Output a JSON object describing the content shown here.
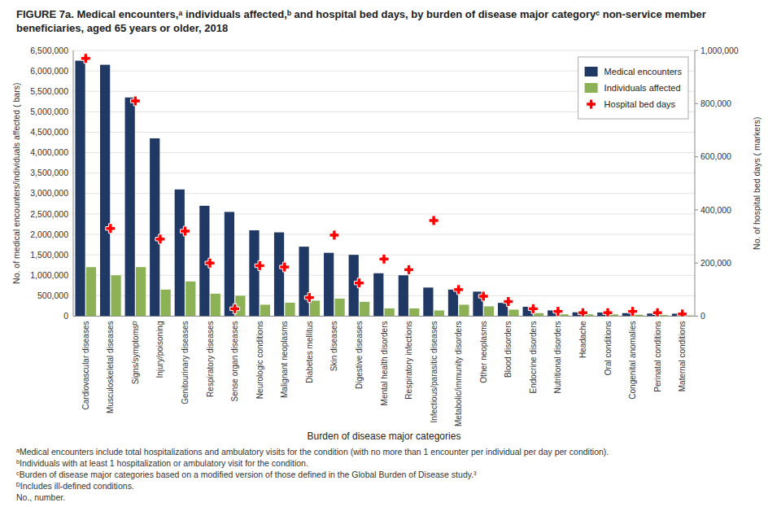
{
  "chart_data": {
    "type": "bar",
    "title": "FIGURE 7a. Medical encounters,ᵃ individuals affected,ᵇ and hospital bed days, by burden of disease major categoryᶜ non-service member beneficiaries, aged 65 years or older, 2018",
    "xlabel": "Burden of disease major categories",
    "ylabel": "No. of medical encounters/individuals affected ( bars)",
    "y2label": "No. of hospital bed days ( markers)",
    "categories": [
      "Cardiovascular diseases",
      "Musculoskeletal diseases",
      "Signs/symptomsᴰ",
      "Injury/poisoning",
      "Genitourinary diseases",
      "Respiratory diseases",
      "Sense organ diseases",
      "Neurologic conditions",
      "Malignant neoplasms",
      "Diabetes mellitus",
      "Skin diseases",
      "Digestive diseases",
      "Mental health disorders",
      "Respiratory infections",
      "Infectious/parasitic diseases",
      "Metabolic/immunity disorders",
      "Other neoplasms",
      "Blood disorders",
      "Endocrine disorders",
      "Nutritional disorders",
      "Headache",
      "Oral conditions",
      "Congenital anomalies",
      "Perinatal conditions",
      "Maternal conditions"
    ],
    "series": [
      {
        "name": "Medical encounters",
        "color": "#1f3864",
        "values": [
          6250000,
          6150000,
          5350000,
          4350000,
          3100000,
          2700000,
          2550000,
          2100000,
          2050000,
          1700000,
          1550000,
          1500000,
          1050000,
          1000000,
          700000,
          650000,
          600000,
          325000,
          230000,
          140000,
          95000,
          90000,
          75000,
          65000,
          60000
        ]
      },
      {
        "name": "Individuals affected",
        "color": "#8db255",
        "values": [
          1200000,
          1000000,
          1200000,
          650000,
          850000,
          550000,
          500000,
          280000,
          330000,
          380000,
          430000,
          350000,
          190000,
          190000,
          140000,
          280000,
          240000,
          160000,
          75000,
          45000,
          45000,
          45000,
          35000,
          28000,
          18000
        ]
      },
      {
        "name": "Hospital bed days",
        "color": "#ff0000",
        "type": "scatter",
        "marker": "plus",
        "axis": "y2",
        "values": [
          970000,
          330000,
          810000,
          290000,
          320000,
          200000,
          28000,
          190000,
          185000,
          70000,
          305000,
          125000,
          215000,
          175000,
          360000,
          100000,
          75000,
          55000,
          28000,
          18000,
          13000,
          13000,
          18000,
          13000,
          8000
        ]
      }
    ],
    "ylim": [
      0,
      6500000
    ],
    "yticks": [
      0,
      {
        "value": 500000,
        "label": "500,000"
      },
      {
        "value": 1000000,
        "label": "1,000,000"
      },
      {
        "value": 1500000,
        "label": "1,500,000"
      },
      {
        "value": 2000000,
        "label": "2,000,000"
      },
      {
        "value": 2500000,
        "label": "2,500,000"
      },
      {
        "value": 3000000,
        "label": "3,000,000"
      },
      {
        "value": 3500000,
        "label": "3,500,000"
      },
      {
        "value": 4000000,
        "label": "4,000,000"
      },
      {
        "value": 4500000,
        "label": "4,500,000"
      },
      {
        "value": 5000000,
        "label": "5,000,000"
      },
      {
        "value": 5500000,
        "label": "5,500,000"
      },
      {
        "value": 6000000,
        "label": "6,000,000"
      },
      {
        "value": 6500000,
        "label": "6,500,000"
      }
    ],
    "y2lim": [
      0,
      1000000
    ],
    "y2ticks": [
      0,
      {
        "value": 200000,
        "label": "200,000"
      },
      {
        "value": 400000,
        "label": "400,000"
      },
      {
        "value": 600000,
        "label": "600,000"
      },
      {
        "value": 800000,
        "label": "800,000"
      },
      {
        "value": 1000000,
        "label": "1,000,000"
      }
    ],
    "grid": true,
    "legend": "upper right",
    "annotations": [
      "ᵃMedical encounters include total hospitalizations and ambulatory visits for the condition (with no more than 1 encounter per individual per day per condition).",
      "ᵇIndividuals with at least 1 hospitalization or ambulatory visit for the condition.",
      "ᶜBurden of disease major categories based on a modified version of those defined in the Global Burden of Disease study.³",
      "ᴰIncludes ill-defined conditions.",
      "No., number."
    ]
  }
}
